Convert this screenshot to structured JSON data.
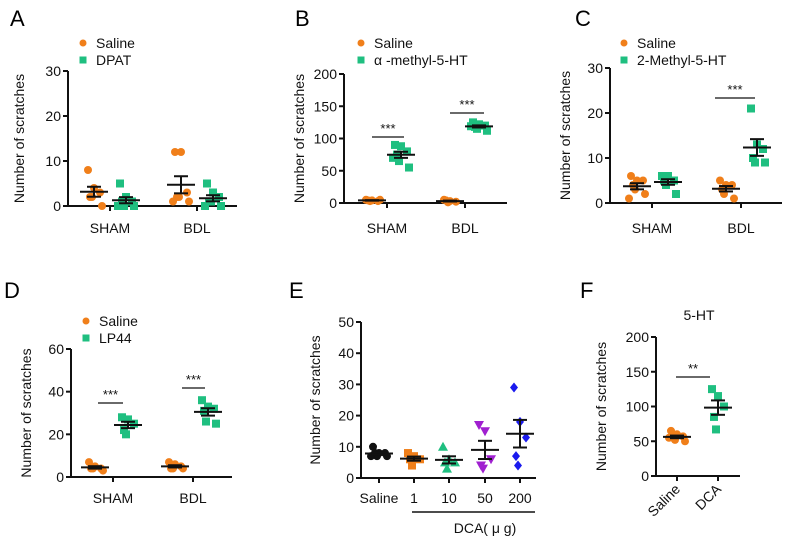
{
  "colors": {
    "saline": "#f07f1a",
    "treatment": "#1fbf80",
    "black": "#111111",
    "purple": "#a020d0",
    "blue": "#1a1aee"
  },
  "chart_data": [
    {
      "panel": "A",
      "type": "scatter",
      "ylabel": "Number of scratches",
      "ylim": [
        0,
        30
      ],
      "yticks": [
        "0",
        "10",
        "20",
        "30"
      ],
      "categories": [
        "SHAM",
        "BDL"
      ],
      "series": [
        {
          "name": "Saline",
          "marker": "circle",
          "color": "#f07f1a",
          "values": [
            [
              8,
              4,
              3,
              2,
              2,
              0
            ],
            [
              12,
              12,
              3,
              2,
              2,
              1,
              1
            ]
          ]
        },
        {
          "name": "DPAT",
          "marker": "square",
          "color": "#1fbf80",
          "values": [
            [
              5,
              2,
              1,
              1,
              0,
              0,
              0
            ],
            [
              5,
              3,
              2,
              1,
              1,
              0,
              0
            ]
          ]
        }
      ],
      "significance": [
        null,
        null
      ]
    },
    {
      "panel": "B",
      "type": "scatter",
      "ylabel": "Number of scratches",
      "ylim": [
        0,
        200
      ],
      "yticks": [
        "0",
        "50",
        "100",
        "150",
        "200"
      ],
      "categories": [
        "SHAM",
        "BDL"
      ],
      "series": [
        {
          "name": "Saline",
          "marker": "circle",
          "color": "#f07f1a",
          "values": [
            [
              5,
              4,
              3,
              4,
              3,
              5
            ],
            [
              5,
              3,
              2,
              4,
              1
            ]
          ]
        },
        {
          "name": "α -methyl-5-HT",
          "marker": "square",
          "color": "#1fbf80",
          "values": [
            [
              90,
              88,
              80,
              75,
              65,
              55,
              70
            ],
            [
              125,
              122,
              120,
              118,
              115,
              112,
              119
            ]
          ]
        }
      ],
      "significance": [
        "***",
        "***"
      ]
    },
    {
      "panel": "C",
      "type": "scatter",
      "ylabel": "Number of scratches",
      "ylim": [
        0,
        30
      ],
      "yticks": [
        "0",
        "10",
        "20",
        "30"
      ],
      "categories": [
        "SHAM",
        "BDL"
      ],
      "series": [
        {
          "name": "Saline",
          "marker": "circle",
          "color": "#f07f1a",
          "values": [
            [
              6,
              5,
              5,
              4,
              3,
              2,
              1
            ],
            [
              5,
              4,
              4,
              3,
              2,
              1
            ]
          ]
        },
        {
          "name": "2-Methyl-5-HT",
          "marker": "square",
          "color": "#1fbf80",
          "values": [
            [
              6,
              6,
              5,
              5,
              4,
              2
            ],
            [
              21,
              13,
              12,
              10,
              9,
              9
            ]
          ]
        }
      ],
      "significance": [
        null,
        "***"
      ]
    },
    {
      "panel": "D",
      "type": "scatter",
      "ylabel": "Number of scratches",
      "ylim": [
        0,
        60
      ],
      "yticks": [
        "0",
        "20",
        "40",
        "60"
      ],
      "categories": [
        "SHAM",
        "BDL"
      ],
      "series": [
        {
          "name": "Saline",
          "marker": "circle",
          "color": "#f07f1a",
          "values": [
            [
              7,
              5,
              4,
              4,
              4,
              3
            ],
            [
              7,
              6,
              5,
              4,
              4,
              4
            ]
          ]
        },
        {
          "name": "LP44",
          "marker": "square",
          "color": "#1fbf80",
          "values": [
            [
              28,
              27,
              25,
              22,
              20
            ],
            [
              36,
              33,
              32,
              31,
              26,
              25
            ]
          ]
        }
      ],
      "significance": [
        "***",
        "***"
      ]
    },
    {
      "panel": "E",
      "type": "scatter",
      "ylabel": "Number of scratches",
      "ylim": [
        0,
        50
      ],
      "yticks": [
        "0",
        "10",
        "20",
        "30",
        "40",
        "50"
      ],
      "categories": [
        "Saline",
        "1",
        "10",
        "50",
        "200"
      ],
      "group_label": "DCA( μ g)",
      "series": [
        {
          "marker": "circle",
          "color": "#111111",
          "values": [
            [
              10,
              8,
              8,
              8,
              7,
              7,
              7
            ]
          ]
        },
        {
          "marker": "square",
          "color": "#f07f1a",
          "values": [
            [
              8,
              7,
              6,
              6,
              4
            ]
          ]
        },
        {
          "marker": "triangle",
          "color": "#1fbf80",
          "values": [
            [
              10,
              6,
              5,
              5,
              3
            ]
          ]
        },
        {
          "marker": "triangle-down",
          "color": "#a020d0",
          "values": [
            [
              17,
              15,
              6,
              4,
              3
            ]
          ]
        },
        {
          "marker": "diamond",
          "color": "#1a1aee",
          "values": [
            [
              29,
              18,
              13,
              7,
              4
            ]
          ]
        }
      ]
    },
    {
      "panel": "F",
      "type": "scatter",
      "title": "5-HT",
      "ylabel": "Number of scratches",
      "ylim": [
        0,
        200
      ],
      "yticks": [
        "0",
        "50",
        "100",
        "150",
        "200"
      ],
      "categories": [
        "Saline",
        "DCA"
      ],
      "series": [
        {
          "marker": "circle",
          "color": "#f07f1a",
          "values": [
            [
              65,
              60,
              57,
              55,
              52,
              50,
              55
            ]
          ]
        },
        {
          "marker": "square",
          "color": "#1fbf80",
          "values": [
            [
              125,
              115,
              100,
              85,
              67
            ]
          ]
        }
      ],
      "significance_between": "**"
    }
  ]
}
